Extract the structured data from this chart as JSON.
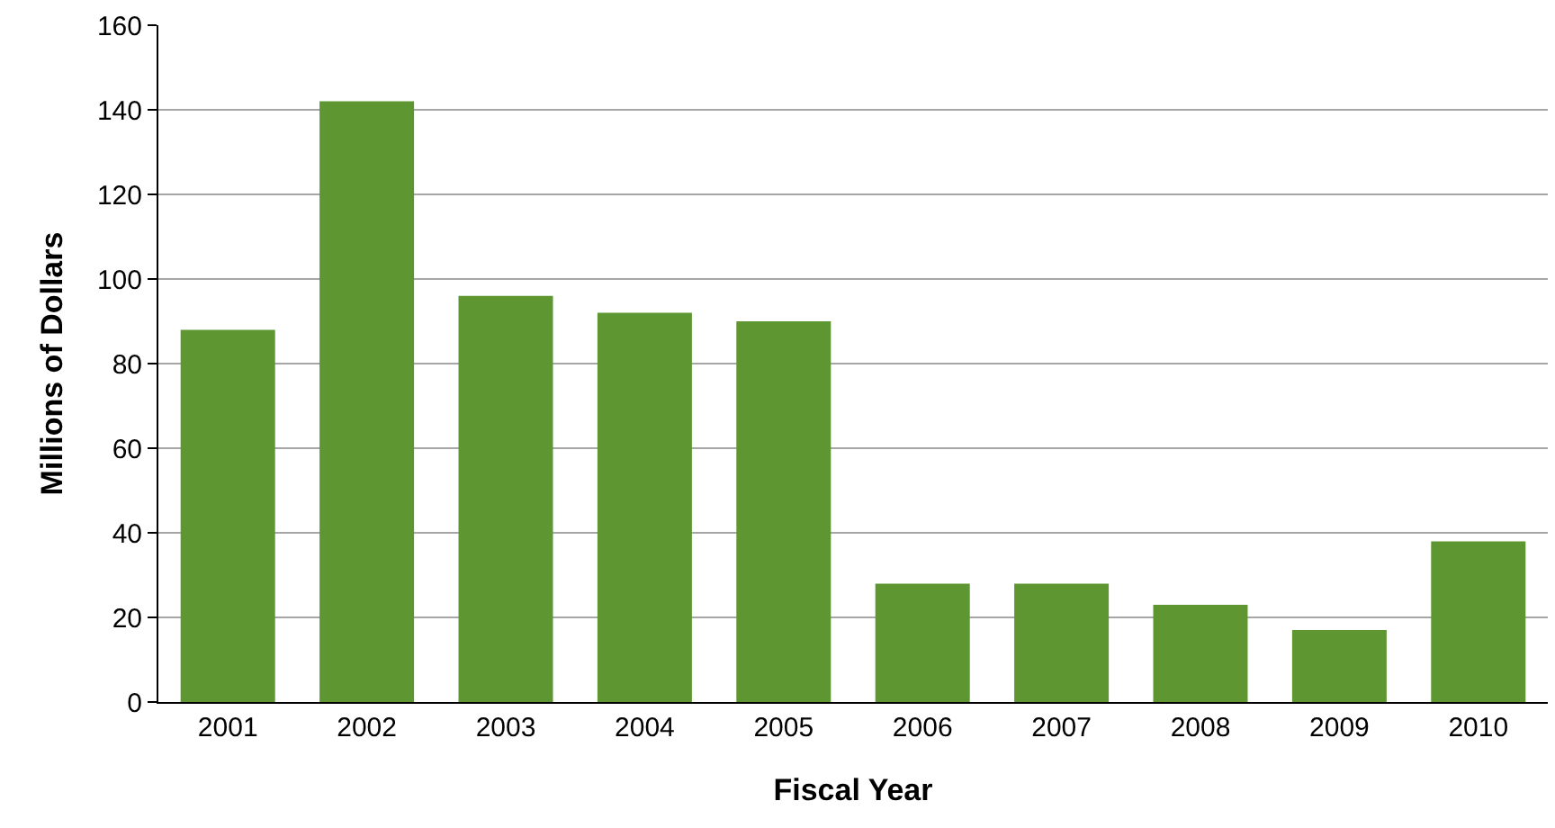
{
  "chart_data": {
    "type": "bar",
    "xlabel": "Fiscal Year",
    "ylabel": "Millions of Dollars",
    "categories": [
      "2001",
      "2002",
      "2003",
      "2004",
      "2005",
      "2006",
      "2007",
      "2008",
      "2009",
      "2010"
    ],
    "values": [
      88,
      142,
      96,
      92,
      90,
      28,
      28,
      23,
      17,
      38
    ],
    "color": "#5e9732",
    "ylim": [
      0,
      160
    ],
    "yticks": [
      0,
      20,
      40,
      60,
      80,
      100,
      120,
      140,
      160
    ],
    "grid": "y"
  }
}
